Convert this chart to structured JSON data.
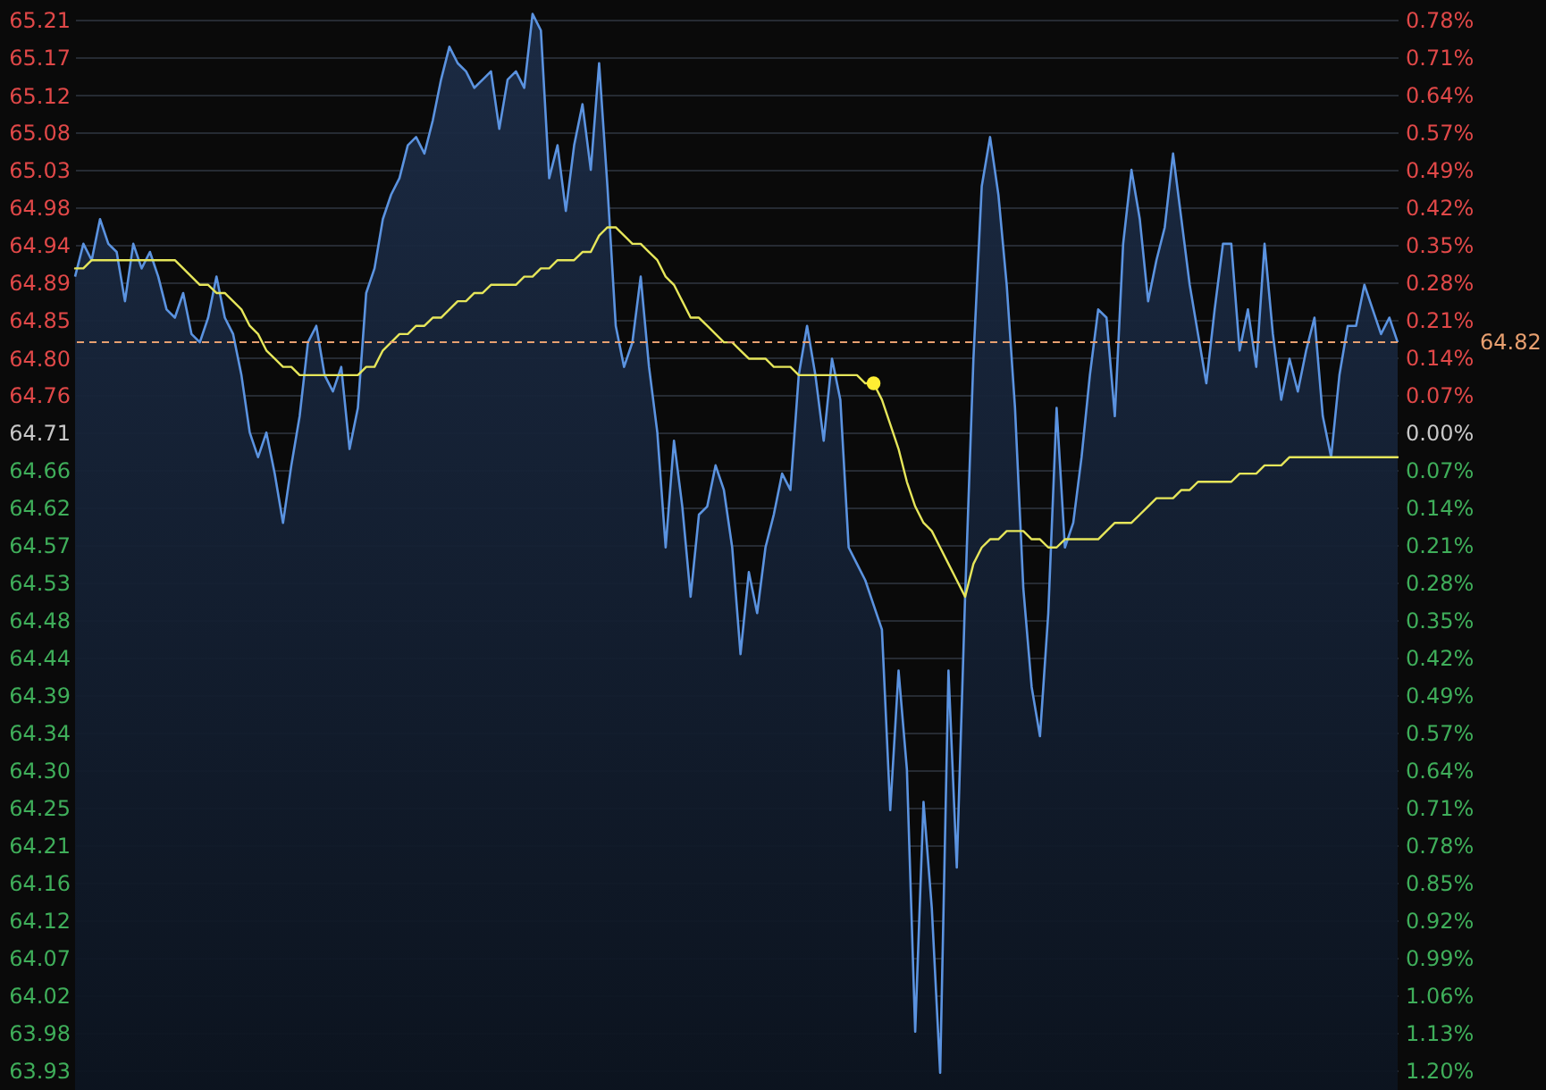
{
  "chart_data": {
    "type": "area",
    "categories": [
      null,
      null,
      null,
      null,
      null,
      null,
      null,
      null,
      null,
      null,
      null,
      null,
      null,
      null,
      null,
      null,
      null,
      null,
      null,
      null,
      null,
      null,
      null,
      null,
      null,
      null,
      null,
      null,
      null,
      null,
      null,
      null,
      null,
      null,
      null,
      null,
      null,
      null,
      null,
      null,
      null,
      null,
      null,
      null,
      null,
      null,
      null,
      null,
      null,
      null,
      null,
      null,
      null,
      null,
      null,
      null,
      null,
      null,
      null,
      null,
      null,
      null,
      null,
      null,
      null,
      null,
      null,
      null,
      null,
      null,
      null,
      null,
      null,
      null,
      null,
      null,
      null,
      null,
      null,
      null,
      null,
      null,
      null,
      null,
      null,
      null,
      null,
      null,
      null,
      null,
      null,
      null,
      null,
      null,
      null,
      null,
      null,
      null,
      null,
      null,
      null,
      null,
      null,
      null,
      null,
      null,
      null,
      null,
      null,
      null,
      null,
      null,
      null,
      null,
      null,
      null,
      null,
      null,
      null,
      null,
      null,
      null,
      null,
      null,
      null,
      null,
      null,
      null,
      null,
      null,
      null,
      null,
      null,
      null,
      null,
      null,
      null,
      null,
      null,
      null,
      null,
      null,
      null,
      null,
      null,
      null,
      null,
      null,
      null,
      null,
      null,
      null,
      null,
      null,
      null,
      null,
      null,
      null,
      null,
      null
    ],
    "series": [
      {
        "type": "area",
        "color": "#5b93e0",
        "values": [
          64.9,
          64.94,
          64.92,
          64.97,
          64.94,
          64.93,
          64.87,
          64.94,
          64.91,
          64.93,
          64.9,
          64.86,
          64.85,
          64.88,
          64.83,
          64.82,
          64.85,
          64.9,
          64.85,
          64.83,
          64.78,
          64.71,
          64.68,
          64.71,
          64.66,
          64.6,
          64.67,
          64.73,
          64.82,
          64.84,
          64.78,
          64.76,
          64.79,
          64.69,
          64.74,
          64.88,
          64.91,
          64.97,
          65.0,
          65.02,
          65.06,
          65.07,
          65.05,
          65.09,
          65.14,
          65.18,
          65.16,
          65.15,
          65.13,
          65.14,
          65.15,
          65.08,
          65.14,
          65.15,
          65.13,
          65.22,
          65.2,
          65.02,
          65.06,
          64.98,
          65.06,
          65.11,
          65.03,
          65.16,
          65.01,
          64.84,
          64.79,
          64.82,
          64.9,
          64.79,
          64.71,
          64.57,
          64.7,
          64.62,
          64.51,
          64.61,
          64.62,
          64.67,
          64.64,
          64.57,
          64.44,
          64.54,
          64.49,
          64.57,
          64.61,
          64.66,
          64.64,
          64.78,
          64.84,
          64.78,
          64.7,
          64.8,
          64.75,
          64.57,
          64.55,
          64.53,
          64.5,
          64.47,
          64.25,
          64.42,
          64.3,
          63.98,
          64.26,
          64.13,
          63.93,
          64.42,
          64.18,
          64.51,
          64.8,
          65.01,
          65.07,
          65.0,
          64.89,
          64.74,
          64.52,
          64.4,
          64.34,
          64.49,
          64.74,
          64.57,
          64.6,
          64.68,
          64.78,
          64.86,
          64.85,
          64.73,
          64.94,
          65.03,
          64.97,
          64.87,
          64.92,
          64.96,
          65.05,
          64.97,
          64.89,
          64.83,
          64.77,
          64.86,
          64.94,
          64.94,
          64.81,
          64.86,
          64.79,
          64.94,
          64.83,
          64.75,
          64.8,
          64.76,
          64.81,
          64.85,
          64.73,
          64.68,
          64.78,
          64.84,
          64.84,
          64.89,
          64.86,
          64.83,
          64.85,
          64.82
        ]
      },
      {
        "type": "line",
        "color": "#e6e65a",
        "values": [
          64.91,
          64.91,
          64.92,
          64.92,
          64.92,
          64.92,
          64.92,
          64.92,
          64.92,
          64.92,
          64.92,
          64.92,
          64.92,
          64.91,
          64.9,
          64.89,
          64.89,
          64.88,
          64.88,
          64.87,
          64.86,
          64.84,
          64.83,
          64.81,
          64.8,
          64.79,
          64.79,
          64.78,
          64.78,
          64.78,
          64.78,
          64.78,
          64.78,
          64.78,
          64.78,
          64.79,
          64.79,
          64.81,
          64.82,
          64.83,
          64.83,
          64.84,
          64.84,
          64.85,
          64.85,
          64.86,
          64.87,
          64.87,
          64.88,
          64.88,
          64.89,
          64.89,
          64.89,
          64.89,
          64.9,
          64.9,
          64.91,
          64.91,
          64.92,
          64.92,
          64.92,
          64.93,
          64.93,
          64.95,
          64.96,
          64.96,
          64.95,
          64.94,
          64.94,
          64.93,
          64.92,
          64.9,
          64.89,
          64.87,
          64.85,
          64.85,
          64.84,
          64.83,
          64.82,
          64.82,
          64.81,
          64.8,
          64.8,
          64.8,
          64.79,
          64.79,
          64.79,
          64.78,
          64.78,
          64.78,
          64.78,
          64.78,
          64.78,
          64.78,
          64.78,
          64.77,
          64.77,
          64.75,
          64.72,
          64.69,
          64.65,
          64.62,
          64.6,
          64.59,
          64.57,
          64.55,
          64.53,
          64.51,
          64.55,
          64.57,
          64.58,
          64.58,
          64.59,
          64.59,
          64.59,
          64.58,
          64.58,
          64.57,
          64.57,
          64.58,
          64.58,
          64.58,
          64.58,
          64.58,
          64.59,
          64.6,
          64.6,
          64.6,
          64.61,
          64.62,
          64.63,
          64.63,
          64.63,
          64.64,
          64.64,
          64.65,
          64.65,
          64.65,
          64.65,
          64.65,
          64.66,
          64.66,
          64.66,
          64.67,
          64.67,
          64.67,
          64.68,
          64.68,
          64.68,
          64.68,
          64.68,
          64.68,
          64.68,
          64.68,
          64.68,
          64.68,
          64.68,
          64.68,
          64.68,
          64.68
        ]
      },
      {
        "type": "scatter",
        "color": "#ffee33",
        "values": [
          null,
          null,
          null,
          null,
          null,
          null,
          null,
          null,
          null,
          null,
          null,
          null,
          null,
          null,
          null,
          null,
          null,
          null,
          null,
          null,
          null,
          null,
          null,
          null,
          null,
          null,
          null,
          null,
          null,
          null,
          null,
          null,
          null,
          null,
          null,
          null,
          null,
          null,
          null,
          null,
          null,
          null,
          null,
          null,
          null,
          null,
          null,
          null,
          null,
          null,
          null,
          null,
          null,
          null,
          null,
          null,
          null,
          null,
          null,
          null,
          null,
          null,
          null,
          null,
          null,
          null,
          null,
          null,
          null,
          null,
          null,
          null,
          null,
          null,
          null,
          null,
          null,
          null,
          null,
          null,
          null,
          null,
          null,
          null,
          null,
          null,
          null,
          null,
          null,
          null,
          null,
          null,
          null,
          null,
          null,
          null,
          64.77,
          null,
          null,
          null,
          null,
          null,
          null,
          null,
          null,
          null,
          null,
          null,
          null,
          null,
          null,
          null,
          null,
          null,
          null,
          null,
          null,
          null,
          null,
          null,
          null,
          null,
          null,
          null,
          null,
          null,
          null,
          null,
          null,
          null,
          null,
          null,
          null,
          null,
          null,
          null,
          null,
          null,
          null,
          null,
          null,
          null,
          null,
          null,
          null,
          null,
          null,
          null,
          null,
          null,
          null,
          null,
          null,
          null,
          null,
          null,
          null,
          null,
          null,
          null
        ]
      }
    ],
    "ylim": [
      63.909,
      65.237
    ],
    "yticks": [
      {
        "value": 63.933,
        "label": "63.93"
      },
      {
        "value": 63.979,
        "label": "63.98"
      },
      {
        "value": 64.024,
        "label": "64.02"
      },
      {
        "value": 64.07,
        "label": "64.07"
      },
      {
        "value": 64.116,
        "label": "64.12"
      },
      {
        "value": 64.162,
        "label": "64.16"
      },
      {
        "value": 64.207,
        "label": "64.21"
      },
      {
        "value": 64.253,
        "label": "64.25"
      },
      {
        "value": 64.299,
        "label": "64.30"
      },
      {
        "value": 64.344,
        "label": "64.34"
      },
      {
        "value": 64.39,
        "label": "64.39"
      },
      {
        "value": 64.436,
        "label": "64.44"
      },
      {
        "value": 64.482,
        "label": "64.48"
      },
      {
        "value": 64.527,
        "label": "64.53"
      },
      {
        "value": 64.573,
        "label": "64.57"
      },
      {
        "value": 64.619,
        "label": "64.62"
      },
      {
        "value": 64.664,
        "label": "64.66"
      },
      {
        "value": 64.71,
        "label": "64.71"
      },
      {
        "value": 64.756,
        "label": "64.76"
      },
      {
        "value": 64.801,
        "label": "64.80"
      },
      {
        "value": 64.847,
        "label": "64.85"
      },
      {
        "value": 64.893,
        "label": "64.89"
      },
      {
        "value": 64.939,
        "label": "64.94"
      },
      {
        "value": 64.984,
        "label": "64.98"
      },
      {
        "value": 65.03,
        "label": "65.03"
      },
      {
        "value": 65.076,
        "label": "65.08"
      },
      {
        "value": 65.121,
        "label": "65.12"
      },
      {
        "value": 65.167,
        "label": "65.17"
      },
      {
        "value": 65.213,
        "label": "65.21"
      }
    ],
    "y2lim": [
      -1.238,
      0.814
    ],
    "y2ticks": [
      {
        "value": 0.777,
        "label": "0.78%"
      },
      {
        "value": 0.706,
        "label": "0.71%"
      },
      {
        "value": 0.636,
        "label": "0.64%"
      },
      {
        "value": 0.565,
        "label": "0.57%"
      },
      {
        "value": 0.494,
        "label": "0.49%"
      },
      {
        "value": 0.424,
        "label": "0.42%"
      },
      {
        "value": 0.353,
        "label": "0.35%"
      },
      {
        "value": 0.283,
        "label": "0.28%"
      },
      {
        "value": 0.212,
        "label": "0.21%"
      },
      {
        "value": 0.141,
        "label": "0.14%"
      },
      {
        "value": 0.071,
        "label": "0.07%"
      },
      {
        "value": 0,
        "label": "0.00%"
      },
      {
        "value": -0.071,
        "label": "0.07%"
      },
      {
        "value": -0.141,
        "label": "0.14%"
      },
      {
        "value": -0.212,
        "label": "0.21%"
      },
      {
        "value": -0.283,
        "label": "0.28%"
      },
      {
        "value": -0.353,
        "label": "0.35%"
      },
      {
        "value": -0.424,
        "label": "0.42%"
      },
      {
        "value": -0.494,
        "label": "0.49%"
      },
      {
        "value": -0.565,
        "label": "0.57%"
      },
      {
        "value": -0.636,
        "label": "0.64%"
      },
      {
        "value": -0.706,
        "label": "0.71%"
      },
      {
        "value": -0.777,
        "label": "0.78%"
      },
      {
        "value": -0.848,
        "label": "0.85%"
      },
      {
        "value": -0.918,
        "label": "0.92%"
      },
      {
        "value": -0.989,
        "label": "0.99%"
      },
      {
        "value": -1.06,
        "label": "1.06%"
      },
      {
        "value": -1.13,
        "label": "1.13%"
      },
      {
        "value": -1.201,
        "label": "1.20%"
      }
    ],
    "ref_lines": [
      {
        "axis": "y",
        "value": 64.82,
        "label": "64.82",
        "color": "#e8a070",
        "line_style": "dashed"
      }
    ],
    "grid": "y"
  }
}
